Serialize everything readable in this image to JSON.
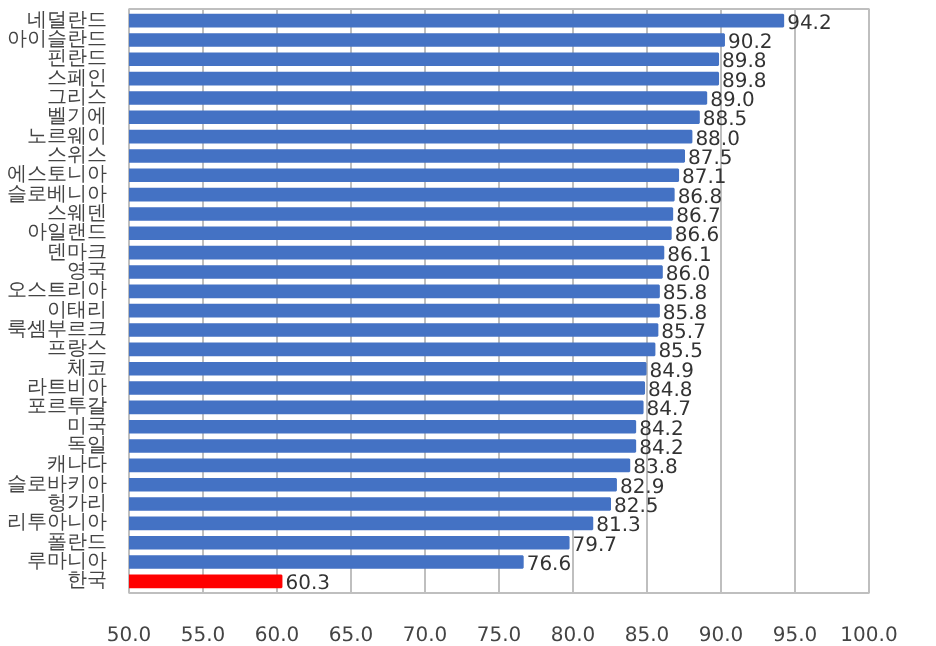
{
  "chart_data": {
    "type": "bar",
    "orientation": "horizontal",
    "categories": [
      "네덜란드",
      "아이슬란드",
      "핀란드",
      "스페인",
      "그리스",
      "벨기에",
      "노르웨이",
      "스위스",
      "에스토니아",
      "슬로베니아",
      "스웨덴",
      "아일랜드",
      "덴마크",
      "영국",
      "오스트리아",
      "이태리",
      "룩셈부르크",
      "프랑스",
      "체코",
      "라트비아",
      "포르투갈",
      "미국",
      "독일",
      "캐나다",
      "슬로바키아",
      "헝가리",
      "리투아니아",
      "폴란드",
      "루마니아",
      "한국"
    ],
    "values": [
      94.2,
      90.2,
      89.8,
      89.8,
      89.0,
      88.5,
      88.0,
      87.5,
      87.1,
      86.8,
      86.7,
      86.6,
      86.1,
      86.0,
      85.8,
      85.8,
      85.7,
      85.5,
      84.9,
      84.8,
      84.7,
      84.2,
      84.2,
      83.8,
      82.9,
      82.5,
      81.3,
      79.7,
      76.6,
      60.3
    ],
    "colors": [
      "#4472c4",
      "#4472c4",
      "#4472c4",
      "#4472c4",
      "#4472c4",
      "#4472c4",
      "#4472c4",
      "#4472c4",
      "#4472c4",
      "#4472c4",
      "#4472c4",
      "#4472c4",
      "#4472c4",
      "#4472c4",
      "#4472c4",
      "#4472c4",
      "#4472c4",
      "#4472c4",
      "#4472c4",
      "#4472c4",
      "#4472c4",
      "#4472c4",
      "#4472c4",
      "#4472c4",
      "#4472c4",
      "#4472c4",
      "#4472c4",
      "#4472c4",
      "#4472c4",
      "#ff0000"
    ],
    "xlim": [
      50,
      100
    ],
    "xticks": [
      {
        "value": 50,
        "label": "50.0"
      },
      {
        "value": 55,
        "label": "55.0"
      },
      {
        "value": 60,
        "label": "60.0"
      },
      {
        "value": 65,
        "label": "65.0"
      },
      {
        "value": 70,
        "label": "70.0"
      },
      {
        "value": 75,
        "label": "75.0"
      },
      {
        "value": 80,
        "label": "80.0"
      },
      {
        "value": 85,
        "label": "85.0"
      },
      {
        "value": 90,
        "label": "90.0"
      },
      {
        "value": 95,
        "label": "95.0"
      },
      {
        "value": 100,
        "label": "100.0"
      }
    ],
    "value_labels": [
      "94.2",
      "90.2",
      "89.8",
      "89.8",
      "89.0",
      "88.5",
      "88.0",
      "87.5",
      "87.1",
      "86.8",
      "86.7",
      "86.6",
      "86.1",
      "86.0",
      "85.8",
      "85.8",
      "85.7",
      "85.5",
      "84.9",
      "84.8",
      "84.7",
      "84.2",
      "84.2",
      "83.8",
      "82.9",
      "82.5",
      "81.3",
      "79.7",
      "76.6",
      "60.3"
    ],
    "grid": "x"
  }
}
